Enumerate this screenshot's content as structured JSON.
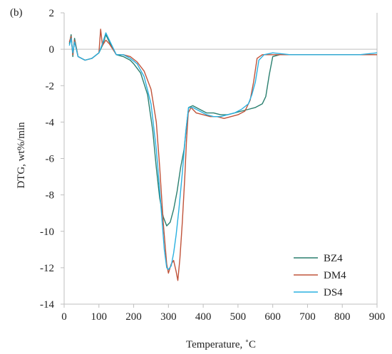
{
  "chart_data": {
    "type": "line",
    "panel_label": "(b)",
    "xlabel": "Temperature, ˚C",
    "ylabel": "DTG, wt%/min",
    "xlim": [
      0,
      900
    ],
    "ylim": [
      -14,
      2
    ],
    "xticks": [
      "0",
      "100",
      "200",
      "300",
      "400",
      "500",
      "600",
      "700",
      "800",
      "900"
    ],
    "yticks": [
      "2",
      "0",
      "-2",
      "-4",
      "-6",
      "-8",
      "-10",
      "-12",
      "-14"
    ],
    "grid": "horizontal line at 0 only",
    "legend_position": "bottom-right",
    "series": [
      {
        "name": "BZ4",
        "color": "#2a7f6f",
        "points": [
          [
            15,
            0.3
          ],
          [
            20,
            0.8
          ],
          [
            25,
            -0.4
          ],
          [
            30,
            0.6
          ],
          [
            40,
            -0.4
          ],
          [
            60,
            -0.6
          ],
          [
            80,
            -0.5
          ],
          [
            100,
            -0.2
          ],
          [
            110,
            0.2
          ],
          [
            120,
            0.8
          ],
          [
            130,
            0.4
          ],
          [
            150,
            -0.3
          ],
          [
            170,
            -0.4
          ],
          [
            190,
            -0.6
          ],
          [
            200,
            -0.8
          ],
          [
            220,
            -1.3
          ],
          [
            240,
            -2.5
          ],
          [
            255,
            -4.5
          ],
          [
            265,
            -6.5
          ],
          [
            275,
            -8.2
          ],
          [
            285,
            -9.2
          ],
          [
            295,
            -9.7
          ],
          [
            305,
            -9.5
          ],
          [
            315,
            -8.8
          ],
          [
            325,
            -7.8
          ],
          [
            335,
            -6.5
          ],
          [
            345,
            -5.5
          ],
          [
            352,
            -4.2
          ],
          [
            358,
            -3.2
          ],
          [
            370,
            -3.1
          ],
          [
            390,
            -3.3
          ],
          [
            410,
            -3.5
          ],
          [
            430,
            -3.5
          ],
          [
            450,
            -3.6
          ],
          [
            470,
            -3.6
          ],
          [
            490,
            -3.5
          ],
          [
            510,
            -3.4
          ],
          [
            530,
            -3.3
          ],
          [
            550,
            -3.2
          ],
          [
            570,
            -3.0
          ],
          [
            580,
            -2.6
          ],
          [
            590,
            -1.4
          ],
          [
            600,
            -0.4
          ],
          [
            620,
            -0.3
          ],
          [
            650,
            -0.3
          ],
          [
            700,
            -0.3
          ],
          [
            750,
            -0.3
          ],
          [
            800,
            -0.3
          ],
          [
            850,
            -0.3
          ],
          [
            900,
            -0.3
          ]
        ]
      },
      {
        "name": "DM4",
        "color": "#c0533a",
        "points": [
          [
            15,
            0.4
          ],
          [
            20,
            0.7
          ],
          [
            25,
            -0.3
          ],
          [
            30,
            0.5
          ],
          [
            40,
            -0.4
          ],
          [
            60,
            -0.6
          ],
          [
            80,
            -0.5
          ],
          [
            100,
            -0.2
          ],
          [
            105,
            1.1
          ],
          [
            110,
            0.2
          ],
          [
            120,
            0.5
          ],
          [
            130,
            0.3
          ],
          [
            150,
            -0.3
          ],
          [
            170,
            -0.3
          ],
          [
            190,
            -0.4
          ],
          [
            210,
            -0.7
          ],
          [
            230,
            -1.2
          ],
          [
            250,
            -2.2
          ],
          [
            265,
            -4.0
          ],
          [
            275,
            -6.5
          ],
          [
            285,
            -9.5
          ],
          [
            295,
            -11.8
          ],
          [
            300,
            -12.3
          ],
          [
            308,
            -11.8
          ],
          [
            315,
            -11.6
          ],
          [
            322,
            -12.2
          ],
          [
            327,
            -12.7
          ],
          [
            333,
            -11.5
          ],
          [
            340,
            -9.5
          ],
          [
            347,
            -7.0
          ],
          [
            352,
            -5.0
          ],
          [
            357,
            -3.5
          ],
          [
            365,
            -3.2
          ],
          [
            380,
            -3.5
          ],
          [
            400,
            -3.6
          ],
          [
            420,
            -3.7
          ],
          [
            440,
            -3.7
          ],
          [
            460,
            -3.8
          ],
          [
            480,
            -3.7
          ],
          [
            500,
            -3.6
          ],
          [
            520,
            -3.4
          ],
          [
            535,
            -2.8
          ],
          [
            545,
            -1.8
          ],
          [
            555,
            -0.5
          ],
          [
            570,
            -0.3
          ],
          [
            600,
            -0.3
          ],
          [
            650,
            -0.3
          ],
          [
            700,
            -0.3
          ],
          [
            750,
            -0.3
          ],
          [
            800,
            -0.3
          ],
          [
            850,
            -0.3
          ],
          [
            900,
            -0.3
          ]
        ]
      },
      {
        "name": "DS4",
        "color": "#2ab0e0",
        "points": [
          [
            15,
            0.2
          ],
          [
            20,
            0.6
          ],
          [
            25,
            -0.2
          ],
          [
            30,
            0.4
          ],
          [
            40,
            -0.4
          ],
          [
            60,
            -0.6
          ],
          [
            80,
            -0.5
          ],
          [
            100,
            -0.2
          ],
          [
            110,
            0.3
          ],
          [
            120,
            0.9
          ],
          [
            130,
            0.5
          ],
          [
            150,
            -0.3
          ],
          [
            170,
            -0.3
          ],
          [
            190,
            -0.5
          ],
          [
            210,
            -0.8
          ],
          [
            230,
            -1.5
          ],
          [
            250,
            -3.0
          ],
          [
            265,
            -5.5
          ],
          [
            278,
            -8.5
          ],
          [
            288,
            -11.0
          ],
          [
            295,
            -12.0
          ],
          [
            300,
            -12.1
          ],
          [
            308,
            -11.9
          ],
          [
            315,
            -11.2
          ],
          [
            322,
            -10.2
          ],
          [
            330,
            -8.8
          ],
          [
            340,
            -6.8
          ],
          [
            350,
            -4.5
          ],
          [
            358,
            -3.2
          ],
          [
            370,
            -3.2
          ],
          [
            390,
            -3.4
          ],
          [
            410,
            -3.6
          ],
          [
            430,
            -3.7
          ],
          [
            450,
            -3.7
          ],
          [
            470,
            -3.6
          ],
          [
            490,
            -3.5
          ],
          [
            510,
            -3.3
          ],
          [
            530,
            -3.0
          ],
          [
            540,
            -2.5
          ],
          [
            550,
            -1.8
          ],
          [
            560,
            -0.6
          ],
          [
            575,
            -0.3
          ],
          [
            600,
            -0.2
          ],
          [
            650,
            -0.3
          ],
          [
            700,
            -0.3
          ],
          [
            750,
            -0.3
          ],
          [
            800,
            -0.3
          ],
          [
            850,
            -0.3
          ],
          [
            900,
            -0.2
          ]
        ]
      }
    ]
  }
}
